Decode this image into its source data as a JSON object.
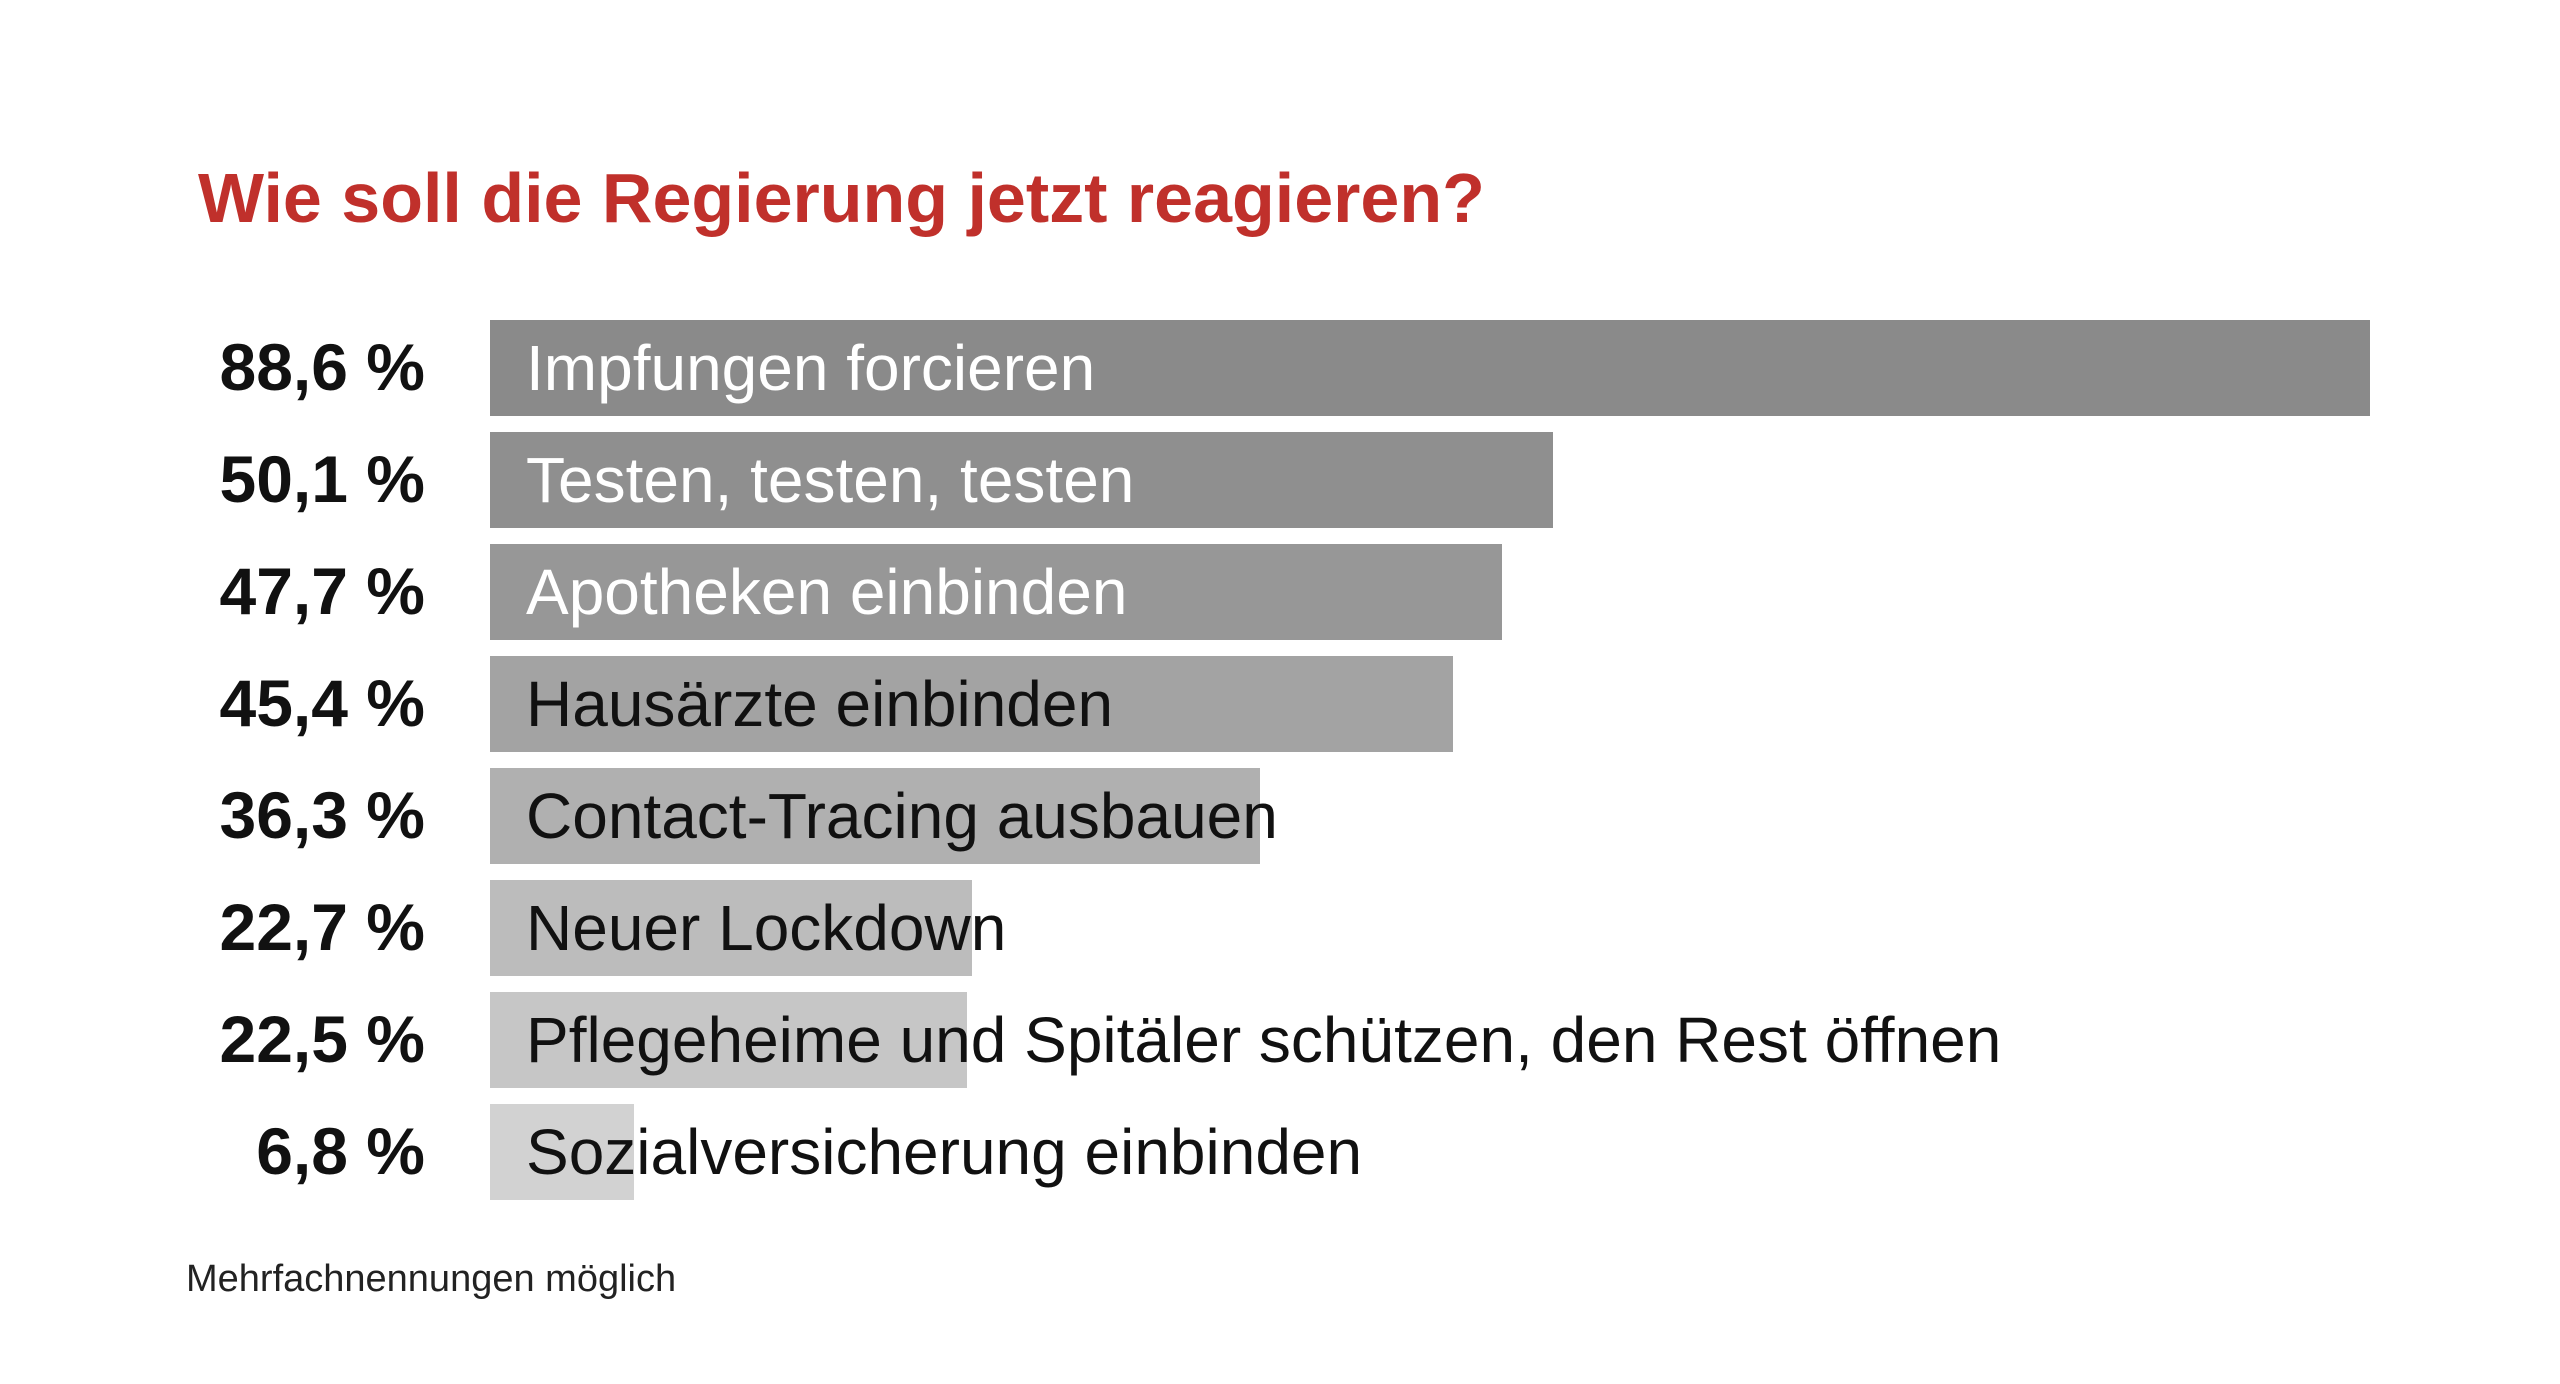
{
  "chart_data": {
    "type": "bar",
    "orientation": "horizontal",
    "title": "Wie soll die Regierung jetzt reagieren?",
    "categories": [
      "Impfungen forcieren",
      "Testen, testen, testen",
      "Apotheken einbinden",
      "Hausärzte einbinden",
      "Contact-Tracing ausbauen",
      "Neuer Lockdown",
      "Pflegeheime und Spitäler schützen, den Rest öffnen",
      "Sozialversicherung einbinden"
    ],
    "values": [
      88.6,
      50.1,
      47.7,
      45.4,
      36.3,
      22.7,
      22.5,
      6.8
    ],
    "value_labels": [
      "88,6 %",
      "50,1 %",
      "47,7 %",
      "45,4 %",
      "36,3 %",
      "22,7 %",
      "22,5 %",
      "6,8 %"
    ],
    "unit": "%",
    "xlim": [
      0,
      88.6
    ],
    "grid": false,
    "legend": "none",
    "bar_colors": [
      "#8a8a8a",
      "#8f8f8f",
      "#979797",
      "#a3a3a3",
      "#b0b0b0",
      "#bcbcbc",
      "#c6c6c6",
      "#d2d2d2"
    ],
    "label_colors": [
      "#ffffff",
      "#ffffff",
      "#ffffff",
      "#111111",
      "#111111",
      "#111111",
      "#111111",
      "#111111"
    ],
    "footnote": "Mehrfachnennungen möglich"
  },
  "colors": {
    "title": "#c0302b",
    "text": "#111111"
  }
}
